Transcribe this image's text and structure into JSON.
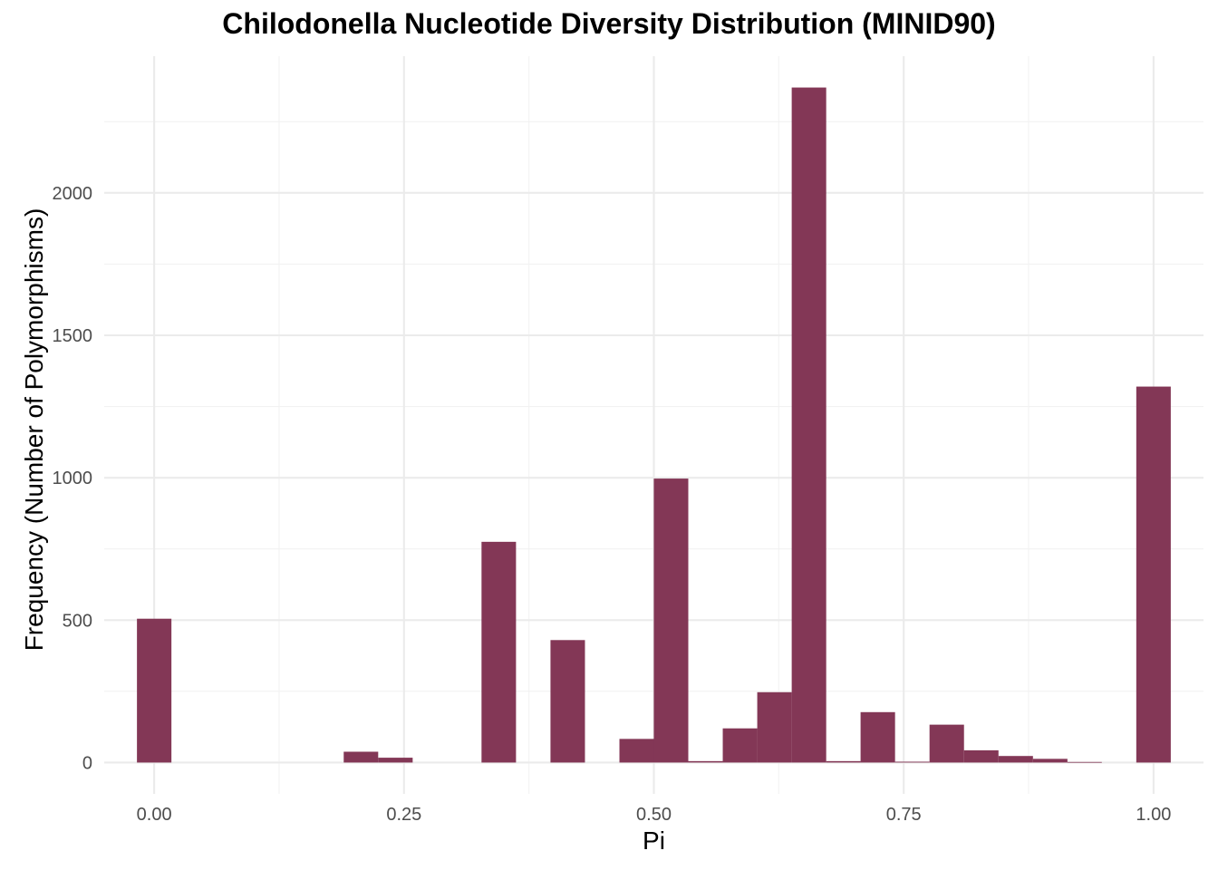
{
  "chart_data": {
    "type": "bar",
    "title": "Chilodonella Nucleotide Diversity Distribution (MINID90)",
    "xlabel": "Pi",
    "ylabel": "Frequency (Number of Polymorphisms)",
    "xlim": [
      -0.05,
      1.05
    ],
    "ylim": [
      -110,
      2480
    ],
    "x_ticks": [
      0.0,
      0.25,
      0.5,
      0.75,
      1.0
    ],
    "x_tick_labels": [
      "0.00",
      "0.25",
      "0.50",
      "0.75",
      "1.00"
    ],
    "y_ticks": [
      0,
      500,
      1000,
      1500,
      2000
    ],
    "y_tick_labels": [
      "0",
      "500",
      "1000",
      "1500",
      "2000"
    ],
    "bin_width": 0.0345,
    "bins": [
      {
        "x": 0.0,
        "value": 505
      },
      {
        "x": 0.2069,
        "value": 38
      },
      {
        "x": 0.2414,
        "value": 17
      },
      {
        "x": 0.3448,
        "value": 775
      },
      {
        "x": 0.4138,
        "value": 430
      },
      {
        "x": 0.4828,
        "value": 83
      },
      {
        "x": 0.5172,
        "value": 997
      },
      {
        "x": 0.5517,
        "value": 5
      },
      {
        "x": 0.5862,
        "value": 120
      },
      {
        "x": 0.6207,
        "value": 247
      },
      {
        "x": 0.6552,
        "value": 2370
      },
      {
        "x": 0.6897,
        "value": 5
      },
      {
        "x": 0.7241,
        "value": 177
      },
      {
        "x": 0.7586,
        "value": 3
      },
      {
        "x": 0.7931,
        "value": 133
      },
      {
        "x": 0.8276,
        "value": 43
      },
      {
        "x": 0.8621,
        "value": 23
      },
      {
        "x": 0.8966,
        "value": 13
      },
      {
        "x": 0.931,
        "value": 2
      },
      {
        "x": 1.0,
        "value": 1320
      }
    ],
    "grid": true,
    "colors": {
      "bar": "#833756",
      "grid_major": "#EBEBEB",
      "grid_minor": "#F2F2F2",
      "tick_text": "#4D4D4D"
    }
  }
}
